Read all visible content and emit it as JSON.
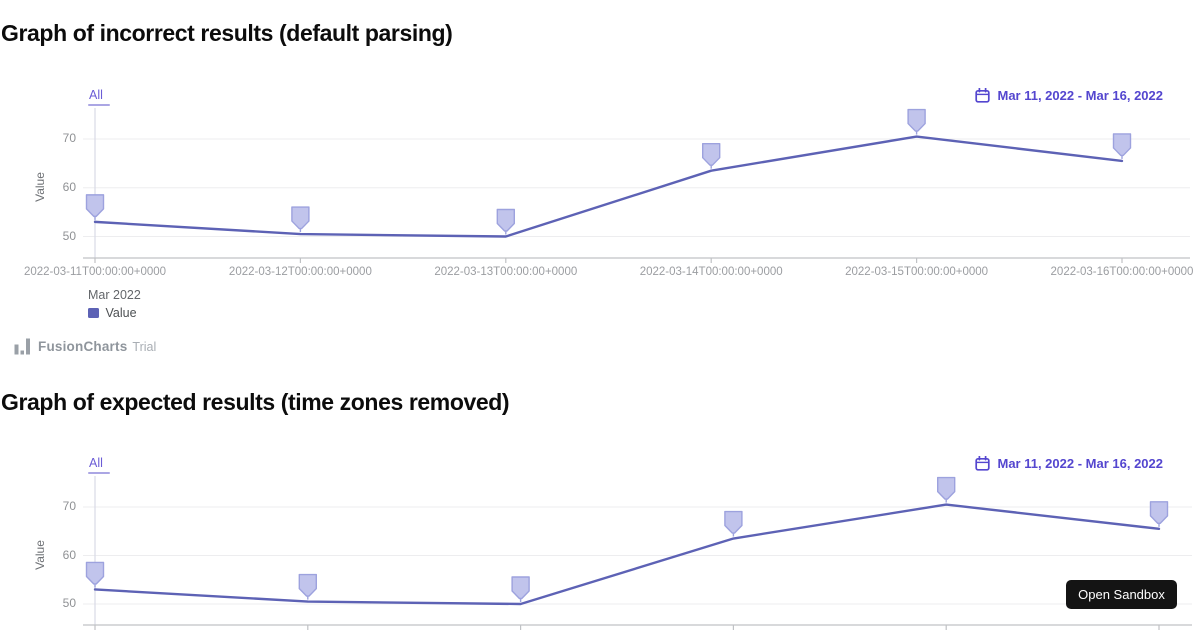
{
  "colors": {
    "series": "#5d62b5",
    "marker_fill": "#c1c4ec",
    "marker_stroke": "#9da2de",
    "selector_text": "#5446cf",
    "grid": "#ededef",
    "axis_line": "#c0c2c5",
    "axis_vertical": "#d9dae6"
  },
  "watermark": {
    "brand": "FusionCharts",
    "suffix": "Trial"
  },
  "sandbox_button": {
    "label": "Open Sandbox"
  },
  "chart_data": [
    {
      "type": "line",
      "title": "Graph of incorrect results (default parsing)",
      "range_selector": "All",
      "date_range": "Mar 11, 2022 - Mar 16, 2022",
      "x": [
        "2022-03-11T00:00:00+0000",
        "2022-03-12T00:00:00+0000",
        "2022-03-13T00:00:00+0000",
        "2022-03-14T00:00:00+0000",
        "2022-03-15T00:00:00+0000",
        "2022-03-16T00:00:00+0000"
      ],
      "series": [
        {
          "name": "Value",
          "values": [
            53,
            50.5,
            50,
            63.5,
            70.5,
            65.5
          ]
        }
      ],
      "ylabel": "Value",
      "yticks": [
        50,
        60,
        70
      ],
      "ylim": [
        46,
        76
      ],
      "grid": "horizontal",
      "marker": "pin above each data point",
      "context_label": "Mar 2022",
      "legend": [
        {
          "label": "Value",
          "color": "#5d62b5"
        }
      ],
      "legend_position": "bottom-left"
    },
    {
      "type": "line",
      "title": "Graph of expected results (time zones removed)",
      "range_selector": "All",
      "date_range": "Mar 11, 2022 - Mar 16, 2022",
      "x_labels_visible": false,
      "series": [
        {
          "name": "Value",
          "values": [
            53,
            50.5,
            50,
            63.5,
            70.5,
            65.5
          ]
        }
      ],
      "ylabel": "Value",
      "yticks": [
        50,
        60,
        70
      ],
      "ylim": [
        46,
        76
      ],
      "grid": "horizontal",
      "marker": "pin above each data point"
    }
  ]
}
